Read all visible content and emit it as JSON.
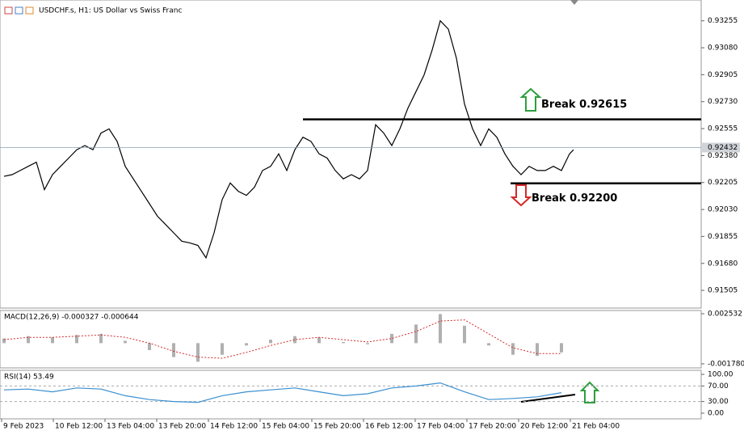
{
  "chart_data": [
    {
      "type": "line",
      "title": "USDCHF.s, H1:  US Dollar vs Swiss Franc",
      "color": "#000000",
      "x": [
        0.75,
        3.25,
        5.75,
        8.25,
        10.75,
        13.25,
        15.75,
        18.25,
        20.75,
        23.25,
        25.75,
        28.25,
        30.75,
        33.25,
        35.75,
        38.25,
        40.75,
        43.25,
        45.75,
        48.25,
        50.75,
        53.25,
        55.75,
        58.25,
        60.75,
        63.25,
        65.75,
        68.25,
        70.75,
        73.25,
        75.75,
        78.25,
        80.75,
        83.25,
        85.75,
        88.25,
        90.75,
        93.25,
        95.75,
        98.25,
        100.75,
        103.25,
        105.75,
        108.25,
        110.75,
        113.25,
        115.75,
        118.25,
        120.75,
        123.25,
        125.75,
        128.25,
        130.75,
        133.25,
        135.75,
        138.25,
        140.75,
        143.25,
        145.75,
        148.25,
        150.75,
        153.25,
        155.75,
        158.25,
        160.75,
        163.25,
        165.75,
        168.25,
        170.75,
        173.25,
        175.75,
        177
      ],
      "values": [
        0.92245,
        0.92256,
        0.92283,
        0.9231,
        0.92337,
        0.92159,
        0.92256,
        0.9231,
        0.92364,
        0.92418,
        0.92445,
        0.92418,
        0.92526,
        0.92553,
        0.92472,
        0.9231,
        0.92229,
        0.92148,
        0.92067,
        0.91986,
        0.91932,
        0.91878,
        0.91824,
        0.91813,
        0.91797,
        0.91716,
        0.91878,
        0.92094,
        0.92202,
        0.92148,
        0.92121,
        0.92175,
        0.92283,
        0.9231,
        0.92391,
        0.92283,
        0.92418,
        0.92499,
        0.92472,
        0.92391,
        0.92364,
        0.92283,
        0.92229,
        0.92256,
        0.92229,
        0.92283,
        0.9258,
        0.92526,
        0.92445,
        0.92553,
        0.92688,
        0.92796,
        0.92904,
        0.93066,
        0.93255,
        0.93201,
        0.93012,
        0.92715,
        0.92553,
        0.92445,
        0.92553,
        0.92499,
        0.92391,
        0.9231,
        0.92256,
        0.9231,
        0.92283,
        0.92283,
        0.9231,
        0.92283,
        0.92391,
        0.92418
      ],
      "xlim": [
        -0.5,
        216.5
      ],
      "ylim": [
        0.9139,
        0.9339
      ],
      "yticks": [
        {
          "value": 0.93255,
          "label": "0.93255"
        },
        {
          "value": 0.9308,
          "label": "0.93080"
        },
        {
          "value": 0.92905,
          "label": "0.92905"
        },
        {
          "value": 0.9273,
          "label": "0.92730"
        },
        {
          "value": 0.92555,
          "label": "0.92555"
        },
        {
          "value": 0.9238,
          "label": "0.92380"
        },
        {
          "value": 0.92205,
          "label": "0.92205"
        },
        {
          "value": 0.9203,
          "label": "0.92030"
        },
        {
          "value": 0.91855,
          "label": "0.91855"
        },
        {
          "value": 0.9168,
          "label": "0.91680"
        },
        {
          "value": 0.91505,
          "label": "0.91505"
        }
      ],
      "current_price": {
        "value": 0.92432,
        "label": "0.92432"
      },
      "levels": [
        {
          "value": 0.92615,
          "start": 93.25,
          "text": "Break 0.92615",
          "color": "#2e9e3e"
        },
        {
          "value": 0.922,
          "start": 157.5,
          "text": "Break 0.92200",
          "color": "#d42a2a"
        }
      ]
    },
    {
      "type": "bar",
      "title": "MACD(12,26,9) -0.000327 -0.000644",
      "x": [
        0.75,
        8.25,
        15.75,
        23.25,
        30.75,
        38.25,
        45.75,
        53.25,
        60.75,
        68.25,
        75.75,
        83.25,
        90.75,
        98.25,
        105.75,
        113.25,
        120.75,
        128.25,
        135.75,
        143.25,
        150.75,
        158.25,
        165.75,
        173.25
      ],
      "series": [
        {
          "color": "#b0b0b0",
          "values": [
            0.0004,
            0.0006,
            0.0005,
            0.0007,
            0.0008,
            0.0002,
            -0.0006,
            -0.0012,
            -0.0016,
            -0.001,
            -0.0002,
            0.0003,
            0.0006,
            0.0005,
            0.0001,
            -0.0001,
            0.0008,
            0.0016,
            0.0025,
            0.0015,
            -0.0002,
            -0.001,
            -0.0011,
            -0.0008
          ]
        },
        {
          "color": "#d42a2a",
          "values": [
            0.0003,
            0.0005,
            0.0005,
            0.0006,
            0.0007,
            0.0005,
            0,
            -0.0007,
            -0.0012,
            -0.0013,
            -0.0008,
            -0.0002,
            0.0003,
            0.0005,
            0.0003,
            0.0001,
            0.0004,
            0.001,
            0.0019,
            0.002,
            0.0008,
            -0.0004,
            -0.0009,
            -0.0009
          ]
        }
      ],
      "xlim": [
        -0.5,
        216.5
      ],
      "ylim": [
        -0.00213,
        0.00281
      ],
      "yticks": [
        {
          "value": 0.002532,
          "label": "0.002532"
        },
        {
          "value": -0.00178,
          "label": "-0.001780"
        }
      ]
    },
    {
      "type": "line",
      "title": "RSI(14) 53.49",
      "color": "#3a8fd0",
      "x": [
        0.75,
        8.25,
        15.75,
        23.25,
        30.75,
        38.25,
        45.75,
        53.25,
        60.75,
        68.25,
        75.75,
        83.25,
        90.75,
        98.25,
        105.75,
        113.25,
        120.75,
        128.25,
        135.75,
        143.25,
        150.75,
        158.25,
        165.75,
        173.25
      ],
      "values": [
        60,
        62,
        55,
        65,
        62,
        45,
        35,
        30,
        28,
        45,
        55,
        60,
        65,
        55,
        45,
        50,
        65,
        70,
        78,
        55,
        35,
        38,
        42,
        53
      ],
      "xlim": [
        -0.5,
        216.5
      ],
      "ylim": [
        -14.6,
        110.4
      ],
      "yticks": [
        {
          "value": 100,
          "label": "100.00"
        },
        {
          "value": 70,
          "label": "70.00"
        },
        {
          "value": 30,
          "label": "30.00"
        },
        {
          "value": 0,
          "label": "0.00"
        }
      ],
      "xticks": [
        {
          "value": 0,
          "label": "9 Feb 2023"
        },
        {
          "value": 16,
          "label": "10 Feb 12:00"
        },
        {
          "value": 32,
          "label": "13 Feb 04:00"
        },
        {
          "value": 48,
          "label": "13 Feb 20:00"
        },
        {
          "value": 64,
          "label": "14 Feb 12:00"
        },
        {
          "value": 80,
          "label": "15 Feb 04:00"
        },
        {
          "value": 96,
          "label": "15 Feb 20:00"
        },
        {
          "value": 112,
          "label": "16 Feb 12:00"
        },
        {
          "value": 128,
          "label": "17 Feb 04:00"
        },
        {
          "value": 144,
          "label": "17 Feb 20:00"
        },
        {
          "value": 160,
          "label": "20 Feb 12:00"
        },
        {
          "value": 176,
          "label": "21 Feb 04:00"
        }
      ]
    }
  ]
}
